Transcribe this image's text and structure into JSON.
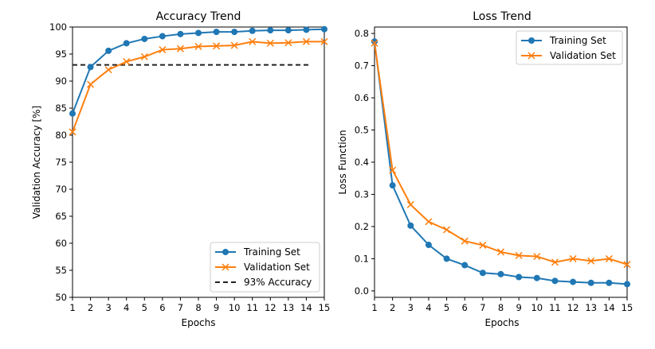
{
  "chart_data": [
    {
      "type": "line",
      "title": "Accuracy Trend",
      "xlabel": "Epochs",
      "ylabel": "Validation Accuracy [%]",
      "xlim": [
        1,
        15
      ],
      "ylim": [
        50,
        100
      ],
      "x": [
        1,
        2,
        3,
        4,
        5,
        6,
        7,
        8,
        9,
        10,
        11,
        12,
        13,
        14,
        15
      ],
      "xticks": [
        "1",
        "2",
        "3",
        "4",
        "5",
        "6",
        "7",
        "8",
        "9",
        "10",
        "11",
        "12",
        "13",
        "14",
        "15"
      ],
      "yticks": [
        "50",
        "55",
        "60",
        "65",
        "70",
        "75",
        "80",
        "85",
        "90",
        "95",
        "100"
      ],
      "series": [
        {
          "name": "Training Set",
          "color": "#1f77b4",
          "marker": "circle",
          "values": [
            84.0,
            92.6,
            95.6,
            97.0,
            97.8,
            98.3,
            98.7,
            98.9,
            99.1,
            99.1,
            99.3,
            99.4,
            99.4,
            99.5,
            99.6
          ]
        },
        {
          "name": "Validation Set",
          "color": "#ff7f0e",
          "marker": "x",
          "values": [
            80.6,
            89.4,
            92.1,
            93.6,
            94.5,
            95.8,
            96.0,
            96.4,
            96.5,
            96.6,
            97.3,
            97.0,
            97.1,
            97.3,
            97.3
          ]
        }
      ],
      "reference_line": {
        "name": "93% Accuracy",
        "value": 93,
        "color": "#222222",
        "style": "dashed"
      },
      "legend": "bottom-right"
    },
    {
      "type": "line",
      "title": "Loss Trend",
      "xlabel": "Epochs",
      "ylabel": "Loss Function",
      "xlim": [
        1,
        15
      ],
      "ylim": [
        -0.02,
        0.82
      ],
      "x": [
        1,
        2,
        3,
        4,
        5,
        6,
        7,
        8,
        9,
        10,
        11,
        12,
        13,
        14,
        15
      ],
      "xticks": [
        "1",
        "2",
        "3",
        "4",
        "5",
        "6",
        "7",
        "8",
        "9",
        "10",
        "11",
        "12",
        "13",
        "14",
        "15"
      ],
      "yticks": [
        "0.0",
        "0.1",
        "0.2",
        "0.3",
        "0.4",
        "0.5",
        "0.6",
        "0.7",
        "0.8"
      ],
      "series": [
        {
          "name": "Training Set",
          "color": "#1f77b4",
          "marker": "circle",
          "values": [
            0.775,
            0.328,
            0.203,
            0.143,
            0.1,
            0.08,
            0.056,
            0.052,
            0.043,
            0.04,
            0.031,
            0.028,
            0.025,
            0.025,
            0.021
          ]
        },
        {
          "name": "Validation Set",
          "color": "#ff7f0e",
          "marker": "x",
          "values": [
            0.77,
            0.375,
            0.268,
            0.215,
            0.19,
            0.155,
            0.142,
            0.121,
            0.11,
            0.107,
            0.089,
            0.1,
            0.093,
            0.1,
            0.082
          ]
        }
      ],
      "legend": "top-right"
    }
  ]
}
